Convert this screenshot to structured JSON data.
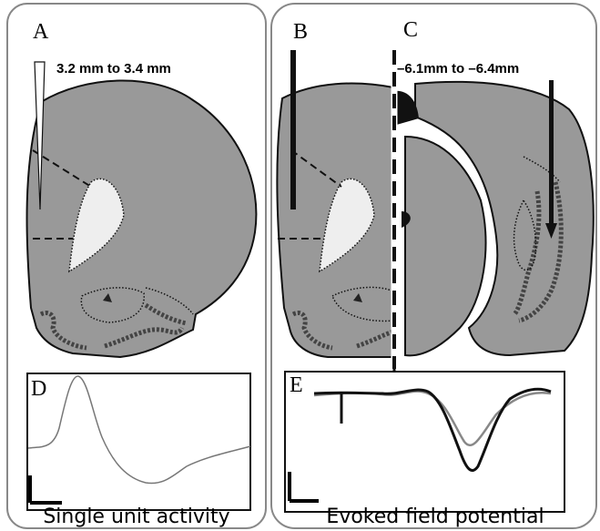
{
  "labels": {
    "a": "A",
    "b": "B",
    "c": "C",
    "d": "D",
    "e": "E"
  },
  "annotations": {
    "coronal_depth": "3.2 mm to 3.4 mm",
    "sagittal_depth": "–6.1mm to –6.4mm"
  },
  "captions": {
    "left": "Single unit activity",
    "right": "Evoked field potential"
  }
}
